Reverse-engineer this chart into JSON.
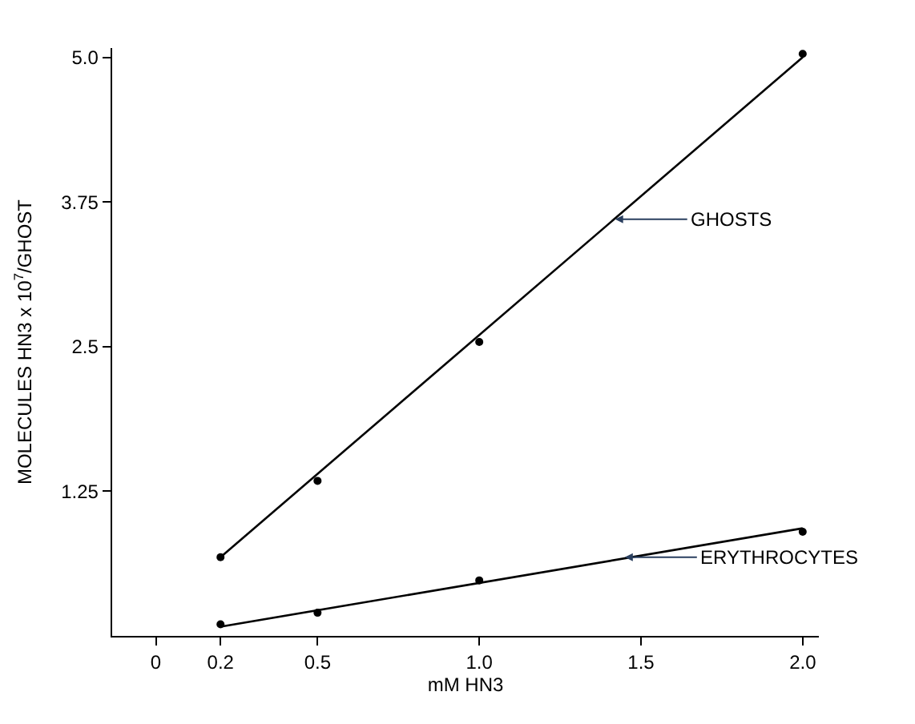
{
  "chart_data": {
    "type": "scatter",
    "xlabel": "mM HN3",
    "ylabel": "MOLECULES HN3 x 10$^{7}$/GHOST",
    "xlim": [
      -0.135,
      2.05
    ],
    "ylim": [
      0,
      5.08
    ],
    "xticks": [
      0,
      0.2,
      0.5,
      {
        "value": 1,
        "label": "1.0"
      },
      1.5,
      {
        "value": 2,
        "label": "2.0"
      }
    ],
    "yticks": [
      1.25,
      2.5,
      3.75,
      {
        "value": 5,
        "label": "5.0"
      }
    ],
    "series": [
      {
        "marker": "circle",
        "color": "#000000",
        "x": [
          0.2,
          0.5,
          1.0,
          2.0
        ],
        "values": [
          0.68,
          1.34,
          2.54,
          5.03
        ]
      },
      {
        "type": "line",
        "color": "#000000",
        "x": [
          0.2,
          2.0
        ],
        "values": [
          0.68,
          5.0
        ]
      },
      {
        "marker": "circle",
        "color": "#000000",
        "x": [
          0.2,
          0.5,
          1.0,
          2.0
        ],
        "values": [
          0.1,
          0.2,
          0.48,
          0.9
        ]
      },
      {
        "type": "line",
        "color": "#000000",
        "x": [
          0.2,
          2.0
        ],
        "values": [
          0.08,
          0.93
        ]
      }
    ],
    "annotations": [
      {
        "text": "GHOSTS",
        "x": 1.42,
        "y": 3.6
      },
      {
        "text": "ERYTHROCYTES",
        "x": 1.45,
        "y": 0.68
      }
    ]
  }
}
